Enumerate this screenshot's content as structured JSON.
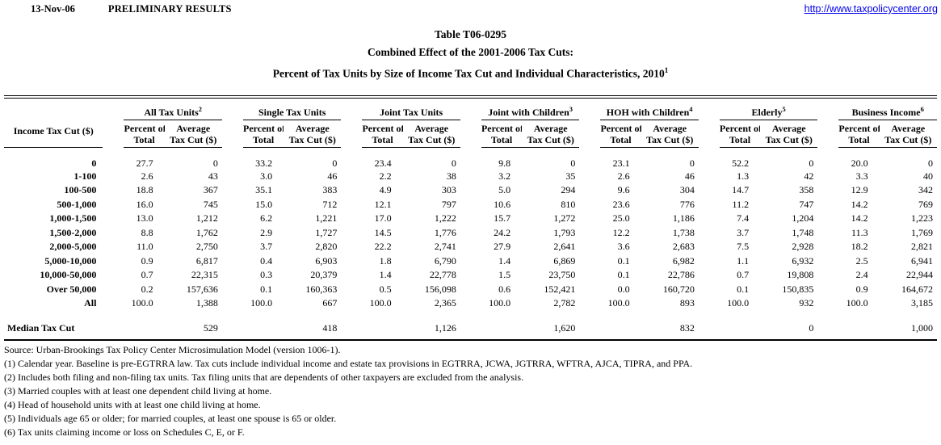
{
  "colors": {
    "text": "#000000",
    "link": "#0000EE"
  },
  "page_header": {
    "date": "13-Nov-06",
    "status": "PRELIMINARY RESULTS",
    "url": "http://www.taxpolicycenter.org"
  },
  "title": {
    "line1": "Table T06-0295",
    "line2": "Combined Effect of the 2001-2006 Tax Cuts:",
    "line3": "Percent of Tax Units by Size of Income Tax Cut and Individual Characteristics, 2010",
    "line3_sup": "1"
  },
  "table": {
    "row_header": "Income Tax Cut ($)",
    "groups": [
      {
        "label": "All Tax Units",
        "superscript": "2"
      },
      {
        "label": "Single Tax Units",
        "superscript": ""
      },
      {
        "label": "Joint Tax Units",
        "superscript": ""
      },
      {
        "label": "Joint with Children",
        "superscript": "3"
      },
      {
        "label": "HOH with Children",
        "superscript": "4"
      },
      {
        "label": "Elderly",
        "superscript": "5"
      },
      {
        "label": "Business Income",
        "superscript": "6"
      }
    ],
    "subheaders": {
      "percent_line1": "Percent of",
      "percent_line2": "Total",
      "average_line1": "Average",
      "average_line2": "Tax Cut ($)"
    },
    "rows": [
      {
        "label": "0",
        "values": [
          "27.7",
          "0",
          "33.2",
          "0",
          "23.4",
          "0",
          "9.8",
          "0",
          "23.1",
          "0",
          "52.2",
          "0",
          "20.0",
          "0"
        ]
      },
      {
        "label": "1-100",
        "values": [
          "2.6",
          "43",
          "3.0",
          "46",
          "2.2",
          "38",
          "3.2",
          "35",
          "2.6",
          "46",
          "1.3",
          "42",
          "3.3",
          "40"
        ]
      },
      {
        "label": "100-500",
        "values": [
          "18.8",
          "367",
          "35.1",
          "383",
          "4.9",
          "303",
          "5.0",
          "294",
          "9.6",
          "304",
          "14.7",
          "358",
          "12.9",
          "342"
        ]
      },
      {
        "label": "500-1,000",
        "values": [
          "16.0",
          "745",
          "15.0",
          "712",
          "12.1",
          "797",
          "10.6",
          "810",
          "23.6",
          "776",
          "11.2",
          "747",
          "14.2",
          "769"
        ]
      },
      {
        "label": "1,000-1,500",
        "values": [
          "13.0",
          "1,212",
          "6.2",
          "1,221",
          "17.0",
          "1,222",
          "15.7",
          "1,272",
          "25.0",
          "1,186",
          "7.4",
          "1,204",
          "14.2",
          "1,223"
        ]
      },
      {
        "label": "1,500-2,000",
        "values": [
          "8.8",
          "1,762",
          "2.9",
          "1,727",
          "14.5",
          "1,776",
          "24.2",
          "1,793",
          "12.2",
          "1,738",
          "3.7",
          "1,748",
          "11.3",
          "1,769"
        ]
      },
      {
        "label": "2,000-5,000",
        "values": [
          "11.0",
          "2,750",
          "3.7",
          "2,820",
          "22.2",
          "2,741",
          "27.9",
          "2,641",
          "3.6",
          "2,683",
          "7.5",
          "2,928",
          "18.2",
          "2,821"
        ]
      },
      {
        "label": "5,000-10,000",
        "values": [
          "0.9",
          "6,817",
          "0.4",
          "6,903",
          "1.8",
          "6,790",
          "1.4",
          "6,869",
          "0.1",
          "6,982",
          "1.1",
          "6,932",
          "2.5",
          "6,941"
        ]
      },
      {
        "label": "10,000-50,000",
        "values": [
          "0.7",
          "22,315",
          "0.3",
          "20,379",
          "1.4",
          "22,778",
          "1.5",
          "23,750",
          "0.1",
          "22,786",
          "0.7",
          "19,808",
          "2.4",
          "22,944"
        ]
      },
      {
        "label": "Over 50,000",
        "values": [
          "0.2",
          "157,636",
          "0.1",
          "160,363",
          "0.5",
          "156,098",
          "0.6",
          "152,421",
          "0.0",
          "160,720",
          "0.1",
          "150,835",
          "0.9",
          "164,672"
        ]
      },
      {
        "label": "All",
        "values": [
          "100.0",
          "1,388",
          "100.0",
          "667",
          "100.0",
          "2,365",
          "100.0",
          "2,782",
          "100.0",
          "893",
          "100.0",
          "932",
          "100.0",
          "3,185"
        ]
      },
      {
        "label": "",
        "values": [
          "",
          "",
          "",
          "",
          "",
          "",
          "",
          "",
          "",
          "",
          "",
          "",
          "",
          ""
        ]
      },
      {
        "label": "Median Tax Cut",
        "label_align": "left",
        "values": [
          "",
          "529",
          "",
          "418",
          "",
          "1,126",
          "",
          "1,620",
          "",
          "832",
          "",
          "0",
          "",
          "1,000"
        ]
      }
    ]
  },
  "footnotes": [
    "Source: Urban-Brookings Tax Policy Center Microsimulation Model (version 1006-1).",
    "(1) Calendar year. Baseline is pre-EGTRRA law. Tax cuts include individual income and estate tax provisions in EGTRRA, JCWA, JGTRRA, WFTRA, AJCA, TIPRA, and PPA.",
    "(2) Includes both filing and non-filing tax units.  Tax filing units that are dependents of other taxpayers are excluded from the analysis.",
    "(3) Married couples with at least one dependent child living at home.",
    "(4) Head of household units with at least one child living at home.",
    "(5) Individuals age 65 or older; for married couples, at least one spouse is 65 or older.",
    "(6) Tax units claiming income or loss on Schedules C, E, or F."
  ]
}
